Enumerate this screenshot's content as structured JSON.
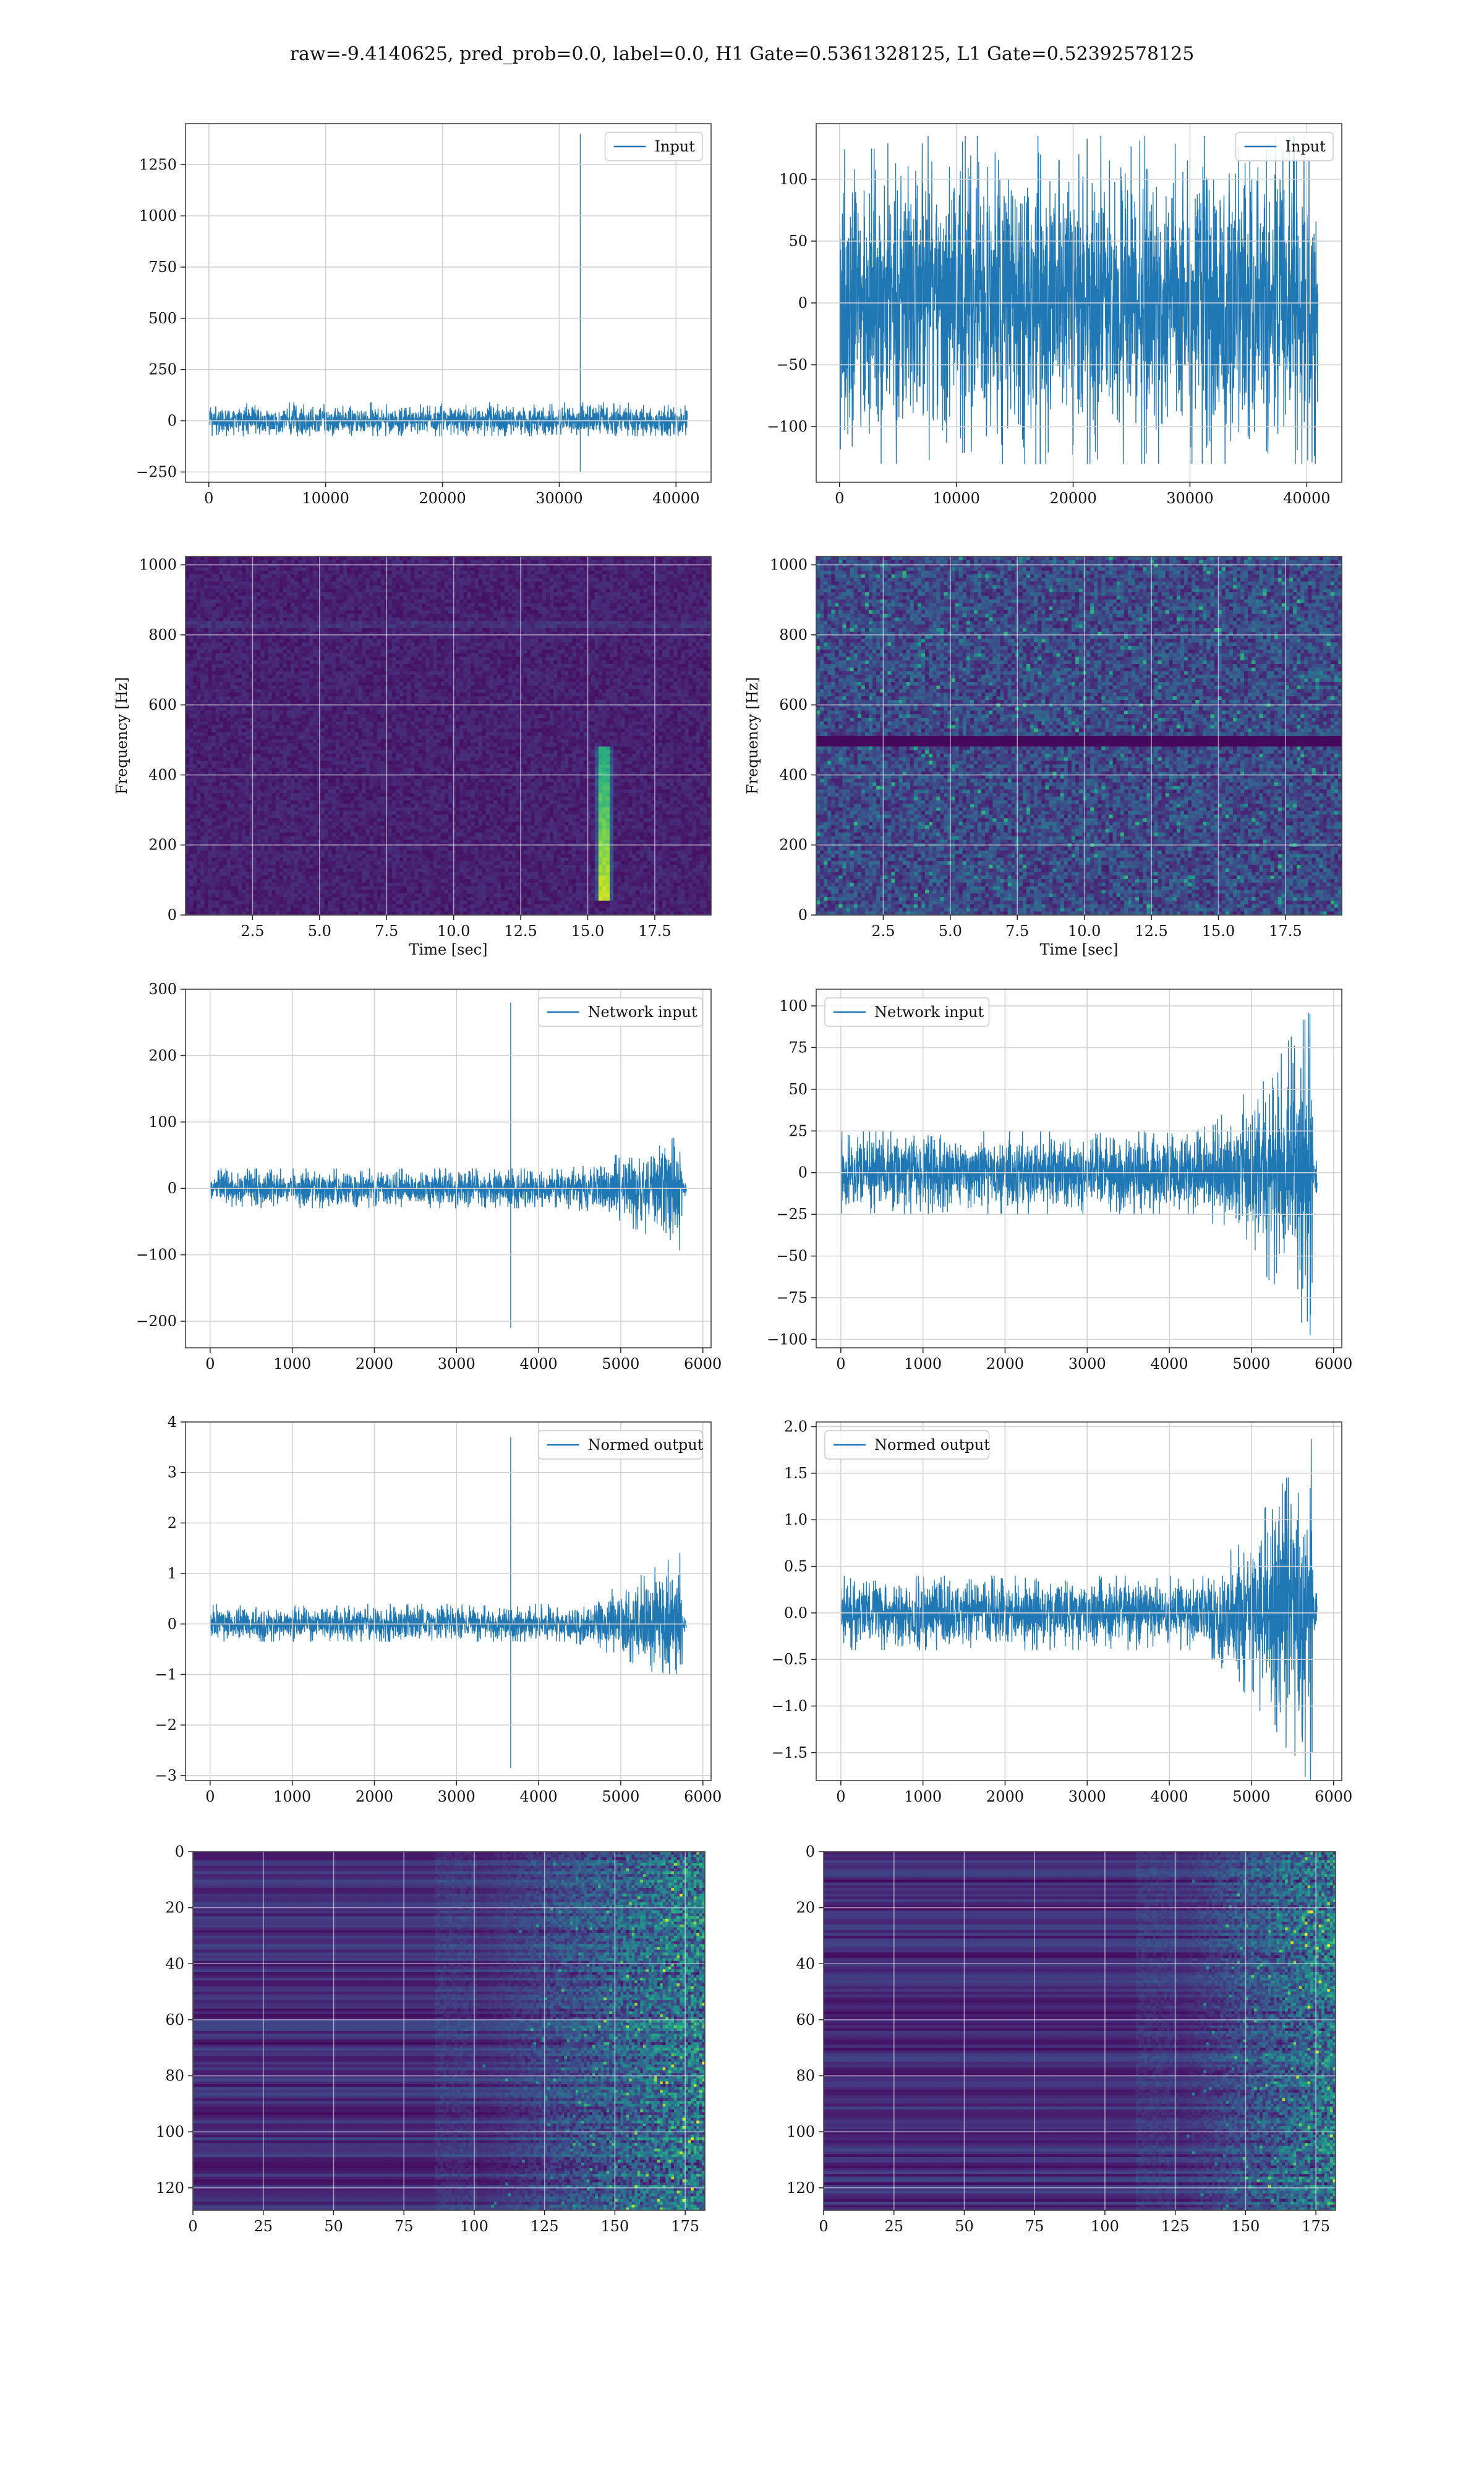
{
  "suptitle": "raw=-9.4140625, pred_prob=0.0, label=0.0, H1 Gate=0.5361328125, L1 Gate=0.52392578125",
  "colors": {
    "line": "#1f77b4",
    "grid": "#d4d4d4",
    "axis": "#444444",
    "viridis": [
      "#440154",
      "#482878",
      "#3e4a89",
      "#31688e",
      "#26828e",
      "#1f9e89",
      "#35b779",
      "#6ece58",
      "#b5de2b",
      "#fde725"
    ]
  },
  "chart_data": [
    {
      "type": "line",
      "panel": "H1 input",
      "legend": [
        "Input"
      ],
      "legend_loc": "upper right",
      "xlim": [
        -2000,
        43000
      ],
      "ylim": [
        -300,
        1450
      ],
      "xticks": [
        0,
        10000,
        20000,
        30000,
        40000
      ],
      "yticks": [
        -250,
        0,
        250,
        500,
        750,
        1000,
        1250
      ],
      "n_samples": 40960,
      "noise_band": [
        -75,
        90
      ],
      "spike": {
        "x": 31800,
        "max": 1400,
        "min": -250
      }
    },
    {
      "type": "line",
      "panel": "L1 input",
      "legend": [
        "Input"
      ],
      "legend_loc": "upper right",
      "xlim": [
        -2000,
        43000
      ],
      "ylim": [
        -145,
        145
      ],
      "xticks": [
        0,
        10000,
        20000,
        30000,
        40000
      ],
      "yticks": [
        -100,
        -50,
        0,
        50,
        100
      ],
      "n_samples": 40960,
      "noise_band": [
        -130,
        135
      ]
    },
    {
      "type": "heatmap",
      "panel": "H1 spectrogram",
      "xlabel": "Time [sec]",
      "ylabel": "Frequency [Hz]",
      "xlim": [
        0,
        19.6
      ],
      "ylim": [
        0,
        1024
      ],
      "xticks": [
        2.5,
        5.0,
        7.5,
        10.0,
        12.5,
        15.0,
        17.5
      ],
      "yticks": [
        0,
        200,
        400,
        600,
        800,
        1000
      ],
      "features": {
        "glitch_time": 15.6,
        "glitch_freq": [
          40,
          480
        ]
      }
    },
    {
      "type": "heatmap",
      "panel": "L1 spectrogram",
      "xlabel": "Time [sec]",
      "ylabel": "Frequency [Hz]",
      "xlim": [
        0,
        19.6
      ],
      "ylim": [
        0,
        1024
      ],
      "xticks": [
        2.5,
        5.0,
        7.5,
        10.0,
        12.5,
        15.0,
        17.5
      ],
      "yticks": [
        0,
        200,
        400,
        600,
        800,
        1000
      ],
      "features": {
        "dark_band_freq": 500
      }
    },
    {
      "type": "line",
      "panel": "H1 network input",
      "legend": [
        "Network input"
      ],
      "legend_loc": "upper right",
      "xlim": [
        -300,
        6100
      ],
      "ylim": [
        -240,
        300
      ],
      "xticks": [
        0,
        1000,
        2000,
        3000,
        4000,
        5000,
        6000
      ],
      "yticks": [
        -200,
        -100,
        0,
        100,
        200,
        300
      ],
      "n_samples": 5800,
      "noise_band": [
        -30,
        30
      ],
      "growth_start": 4300,
      "growth_peak": 95,
      "growth_end": 5750,
      "spike": {
        "x": 3660,
        "max": 280,
        "min": -210
      }
    },
    {
      "type": "line",
      "panel": "L1 network input",
      "legend": [
        "Network input"
      ],
      "legend_loc": "upper left",
      "xlim": [
        -300,
        6100
      ],
      "ylim": [
        -105,
        110
      ],
      "xticks": [
        0,
        1000,
        2000,
        3000,
        4000,
        5000,
        6000
      ],
      "yticks": [
        -100,
        -75,
        -50,
        -25,
        0,
        25,
        50,
        75,
        100
      ],
      "n_samples": 5800,
      "noise_band": [
        -25,
        25
      ],
      "growth_start": 4300,
      "growth_peak": 100,
      "growth_end": 5750
    },
    {
      "type": "line",
      "panel": "H1 normed output",
      "legend": [
        "Normed output"
      ],
      "legend_loc": "upper right",
      "xlim": [
        -300,
        6100
      ],
      "ylim": [
        -3.1,
        4.0
      ],
      "xticks": [
        0,
        1000,
        2000,
        3000,
        4000,
        5000,
        6000
      ],
      "yticks": [
        -3,
        -2,
        -1,
        0,
        1,
        2,
        3,
        4
      ],
      "n_samples": 5800,
      "noise_band": [
        -0.35,
        0.4
      ],
      "growth_start": 4300,
      "growth_peak": 1.35,
      "growth_end": 5750,
      "spike": {
        "x": 3660,
        "max": 3.7,
        "min": -2.85
      }
    },
    {
      "type": "line",
      "panel": "L1 normed output",
      "legend": [
        "Normed output"
      ],
      "legend_loc": "upper left",
      "xlim": [
        -300,
        6100
      ],
      "ylim": [
        -1.8,
        2.05
      ],
      "xticks": [
        0,
        1000,
        2000,
        3000,
        4000,
        5000,
        6000
      ],
      "yticks": [
        -1.5,
        -1.0,
        -0.5,
        0.0,
        0.5,
        1.0,
        1.5,
        2.0
      ],
      "n_samples": 5800,
      "noise_band": [
        -0.4,
        0.4
      ],
      "growth_start": 4300,
      "growth_peak": 1.9,
      "growth_end": 5750
    },
    {
      "type": "heatmap",
      "panel": "H1 features",
      "xlim": [
        0,
        182
      ],
      "ylim": [
        128,
        0
      ],
      "xticks": [
        0,
        25,
        50,
        75,
        100,
        125,
        150,
        175
      ],
      "yticks": [
        0,
        20,
        40,
        60,
        80,
        100,
        120
      ],
      "features": {
        "active_from_col": 100
      }
    },
    {
      "type": "heatmap",
      "panel": "L1 features",
      "xlim": [
        0,
        182
      ],
      "ylim": [
        128,
        0
      ],
      "xticks": [
        0,
        25,
        50,
        75,
        100,
        125,
        150,
        175
      ],
      "yticks": [
        0,
        20,
        40,
        60,
        80,
        100,
        120
      ],
      "features": {
        "active_from_col": 125
      }
    }
  ]
}
